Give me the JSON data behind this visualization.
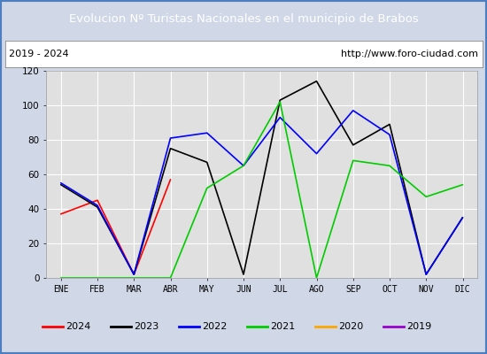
{
  "title": "Evolucion Nº Turistas Nacionales en el municipio de Brabos",
  "subtitle_left": "2019 - 2024",
  "subtitle_right": "http://www.foro-ciudad.com",
  "months": [
    "ENE",
    "FEB",
    "MAR",
    "ABR",
    "MAY",
    "JUN",
    "JUL",
    "AGO",
    "SEP",
    "OCT",
    "NOV",
    "DIC"
  ],
  "series": {
    "2024": [
      37,
      45,
      2,
      57,
      null,
      null,
      null,
      null,
      null,
      null,
      null,
      null
    ],
    "2023": [
      54,
      41,
      2,
      75,
      67,
      2,
      103,
      114,
      77,
      89,
      2,
      35
    ],
    "2022": [
      55,
      42,
      2,
      81,
      84,
      65,
      93,
      72,
      97,
      83,
      2,
      35
    ],
    "2021": [
      0,
      0,
      0,
      0,
      52,
      65,
      102,
      0,
      68,
      65,
      47,
      54
    ],
    "2020": [],
    "2019": []
  },
  "colors": {
    "2024": "#ff0000",
    "2023": "#000000",
    "2022": "#0000ff",
    "2021": "#00cc00",
    "2020": "#ffa500",
    "2019": "#9900cc"
  },
  "ylim": [
    0,
    120
  ],
  "yticks": [
    0,
    20,
    40,
    60,
    80,
    100,
    120
  ],
  "title_bg": "#4d7ebf",
  "title_color": "#ffffff",
  "plot_bg": "#e0e0e0",
  "outer_bg": "#d0d8e8",
  "grid_color": "#ffffff",
  "border_color": "#4d7ebf"
}
